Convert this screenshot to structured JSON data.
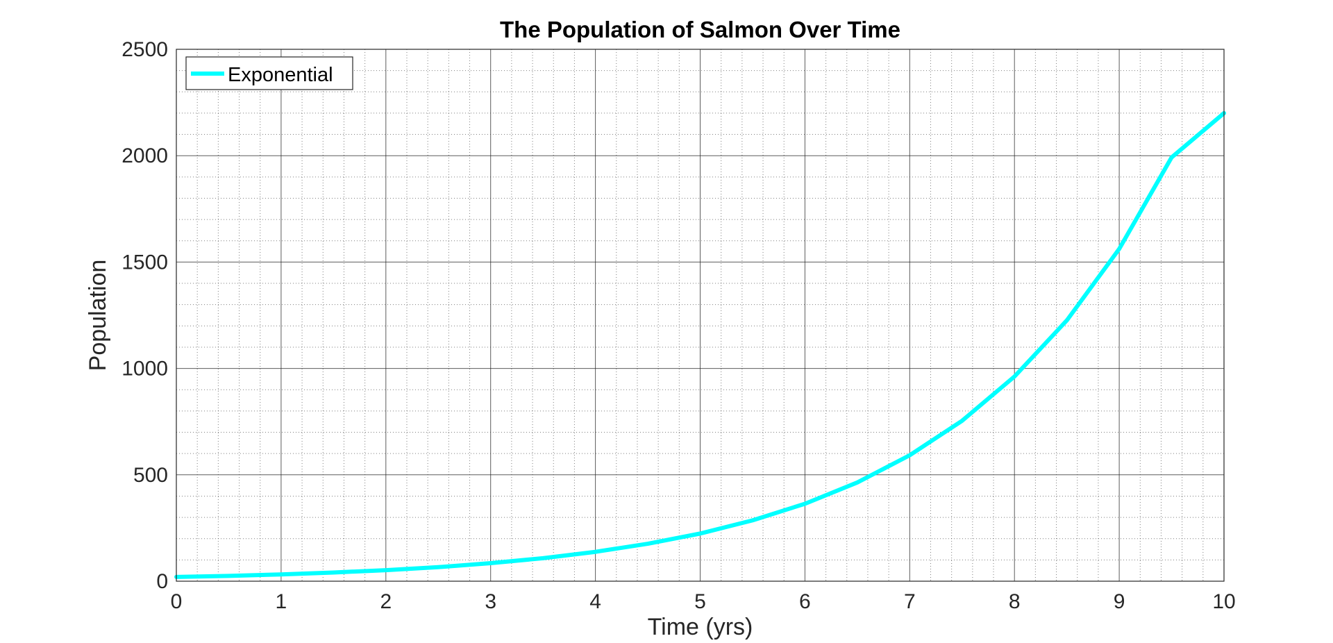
{
  "chart_data": {
    "type": "line",
    "title": "The Population of Salmon Over Time",
    "xlabel": "Time (yrs)",
    "ylabel": "Population",
    "xlim": [
      0,
      10
    ],
    "ylim": [
      0,
      2500
    ],
    "xticks": [
      0,
      1,
      2,
      3,
      4,
      5,
      6,
      7,
      8,
      9,
      10
    ],
    "yticks": [
      0,
      500,
      1000,
      1500,
      2000,
      2500
    ],
    "grid": true,
    "minor_grid": true,
    "legend_position": "top-left",
    "series": [
      {
        "name": "Exponential",
        "color": "#00FFFF",
        "x": [
          0,
          0.5,
          1,
          1.5,
          2,
          2.5,
          3,
          3.5,
          4,
          4.5,
          5,
          5.5,
          6,
          6.5,
          7,
          7.5,
          8,
          8.5,
          9,
          9.5,
          10
        ],
        "y": [
          20,
          25,
          32,
          41,
          52,
          66,
          85,
          108,
          138,
          176,
          224,
          286,
          364,
          464,
          592,
          754,
          962,
          1226,
          1562,
          1992,
          2200
        ]
      }
    ]
  }
}
